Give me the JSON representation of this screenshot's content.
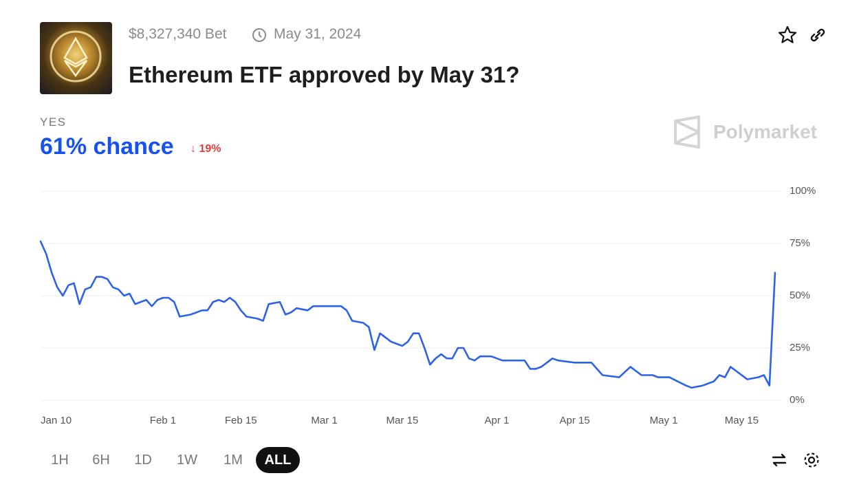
{
  "header": {
    "bet": "$8,327,340 Bet",
    "end_date": "May 31, 2024",
    "title": "Ethereum ETF approved by May 31?"
  },
  "outcome": {
    "label": "YES",
    "chance": "61% chance",
    "change": "19%"
  },
  "brand": "Polymarket",
  "ranges": [
    "1H",
    "6H",
    "1D",
    "1W",
    "1M",
    "ALL"
  ],
  "active_range": "ALL",
  "chart_data": {
    "type": "line",
    "color": "#2d62e8",
    "grid": true,
    "x": [
      "Jan 10",
      "Jan 11",
      "Jan 12",
      "Jan 13",
      "Jan 14",
      "Jan 15",
      "Jan 16",
      "Jan 17",
      "Jan 18",
      "Jan 19",
      "Jan 20",
      "Jan 21",
      "Jan 22",
      "Jan 23",
      "Jan 24",
      "Jan 25",
      "Jan 26",
      "Jan 27",
      "Jan 28",
      "Jan 29",
      "Jan 30",
      "Jan 31",
      "Feb 1",
      "Feb 2",
      "Feb 3",
      "Feb 4",
      "Feb 6",
      "Feb 8",
      "Feb 9",
      "Feb 10",
      "Feb 11",
      "Feb 12",
      "Feb 13",
      "Feb 14",
      "Feb 15",
      "Feb 16",
      "Feb 18",
      "Feb 19",
      "Feb 20",
      "Feb 22",
      "Feb 23",
      "Feb 24",
      "Feb 25",
      "Feb 27",
      "Feb 28",
      "Mar 1",
      "Mar 4",
      "Mar 5",
      "Mar 6",
      "Mar 8",
      "Mar 9",
      "Mar 10",
      "Mar 11",
      "Mar 13",
      "Mar 15",
      "Mar 16",
      "Mar 17",
      "Mar 18",
      "Mar 19",
      "Mar 20",
      "Mar 21",
      "Mar 22",
      "Mar 23",
      "Mar 24",
      "Mar 25",
      "Mar 26",
      "Mar 27",
      "Mar 28",
      "Mar 29",
      "Mar 31",
      "Apr 2",
      "Apr 6",
      "Apr 7",
      "Apr 8",
      "Apr 9",
      "Apr 11",
      "Apr 12",
      "Apr 15",
      "Apr 18",
      "Apr 20",
      "Apr 23",
      "Apr 25",
      "Apr 27",
      "Apr 29",
      "Apr 30",
      "May 2",
      "May 5",
      "May 6",
      "May 8",
      "May 10",
      "May 11",
      "May 12",
      "May 13",
      "May 14",
      "May 16",
      "May 18",
      "May 19",
      "May 20",
      "May 21"
    ],
    "values": [
      76,
      70,
      61,
      54,
      50,
      55,
      56,
      46,
      53,
      54,
      59,
      59,
      58,
      54,
      53,
      50,
      51,
      46,
      47,
      48,
      45,
      48,
      49,
      49,
      47,
      40,
      41,
      43,
      43,
      47,
      48,
      47,
      49,
      47,
      43,
      40,
      39,
      38,
      46,
      47,
      41,
      42,
      44,
      43,
      45,
      45,
      45,
      43,
      38,
      37,
      35,
      24,
      32,
      28,
      26,
      28,
      32,
      32,
      25,
      17,
      20,
      22,
      20,
      20,
      25,
      25,
      20,
      19,
      21,
      21,
      19,
      19,
      15,
      15,
      16,
      20,
      19,
      18,
      18,
      12,
      11,
      16,
      12,
      12,
      11,
      11,
      7,
      6,
      7,
      9,
      12,
      11,
      16,
      14,
      10,
      11,
      12,
      7,
      61
    ],
    "xlim": [
      "Jan 10",
      "May 22"
    ],
    "xticks": [
      "Jan 10",
      "Feb 1",
      "Feb 15",
      "Mar 1",
      "Mar 15",
      "Apr 1",
      "Apr 15",
      "May 1",
      "May 15"
    ],
    "ylim": [
      0,
      100
    ],
    "yticks": [
      {
        "value": 0,
        "label": "0%"
      },
      {
        "value": 25,
        "label": "25%"
      },
      {
        "value": 50,
        "label": "50%"
      },
      {
        "value": 75,
        "label": "75%"
      },
      {
        "value": 100,
        "label": "100%"
      }
    ]
  }
}
